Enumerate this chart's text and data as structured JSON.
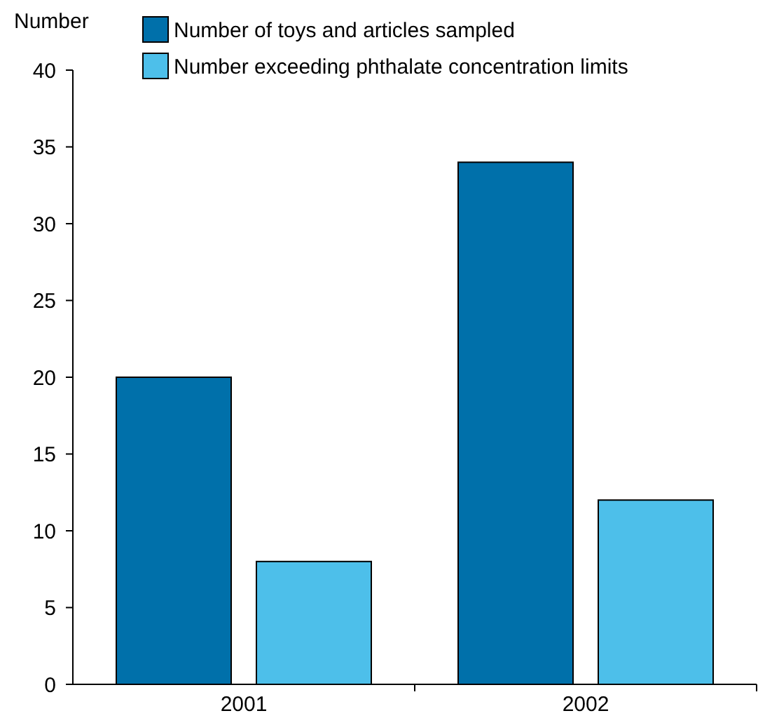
{
  "chart_data": {
    "type": "bar",
    "ylabel": "Number",
    "categories": [
      "2001",
      "2002"
    ],
    "series": [
      {
        "name": "Number of toys and articles sampled",
        "color": "#0070aa",
        "values": [
          20,
          34
        ]
      },
      {
        "name": "Number exceeding phthalate concentration limits",
        "color": "#4dbfea",
        "values": [
          8,
          12
        ]
      }
    ],
    "ylim": [
      0,
      40
    ],
    "yticks": [
      0,
      5,
      10,
      15,
      20,
      25,
      30,
      35,
      40
    ],
    "grid": false,
    "legend": "top"
  }
}
